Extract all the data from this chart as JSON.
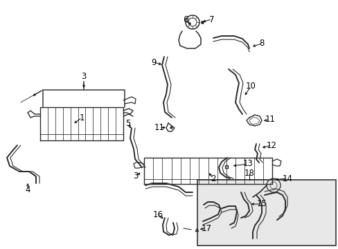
{
  "bg_color": "#ffffff",
  "line_color": "#2a2a2a",
  "box_bg": "#e8e8e8",
  "figsize": [
    4.89,
    3.6
  ],
  "dpi": 100,
  "xlim": [
    0,
    489
  ],
  "ylim": [
    0,
    360
  ]
}
